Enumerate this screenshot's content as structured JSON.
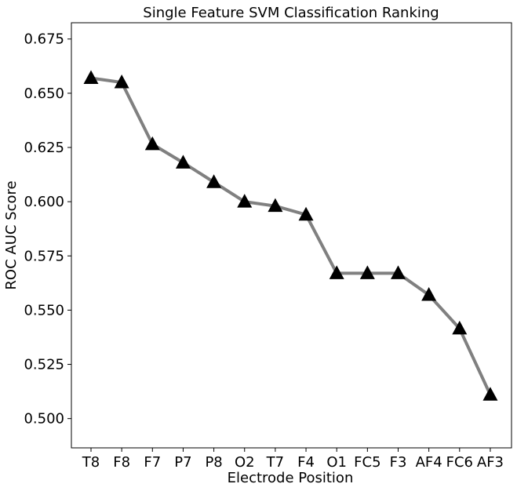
{
  "chart_data": {
    "type": "line",
    "title": "Single Feature SVM Classification Ranking",
    "xlabel": "Electrode Position",
    "ylabel": "ROC AUC Score",
    "categories": [
      "T8",
      "F8",
      "F7",
      "P7",
      "P8",
      "O2",
      "T7",
      "F4",
      "O1",
      "FC5",
      "F3",
      "AF4",
      "FC6",
      "AF3"
    ],
    "values": [
      0.657,
      0.655,
      0.6265,
      0.618,
      0.609,
      0.6,
      0.598,
      0.594,
      0.567,
      0.567,
      0.567,
      0.557,
      0.5415,
      0.511
    ],
    "ylim": [
      0.4865,
      0.6825
    ],
    "yticks": [
      0.5,
      0.525,
      0.55,
      0.575,
      0.6,
      0.625,
      0.65,
      0.675
    ],
    "ytick_labels": [
      "0.500",
      "0.525",
      "0.550",
      "0.575",
      "0.600",
      "0.625",
      "0.650",
      "0.675"
    ],
    "grid": false,
    "line_color": "#808080",
    "marker_color": "#000000",
    "marker": "triangle-up"
  }
}
